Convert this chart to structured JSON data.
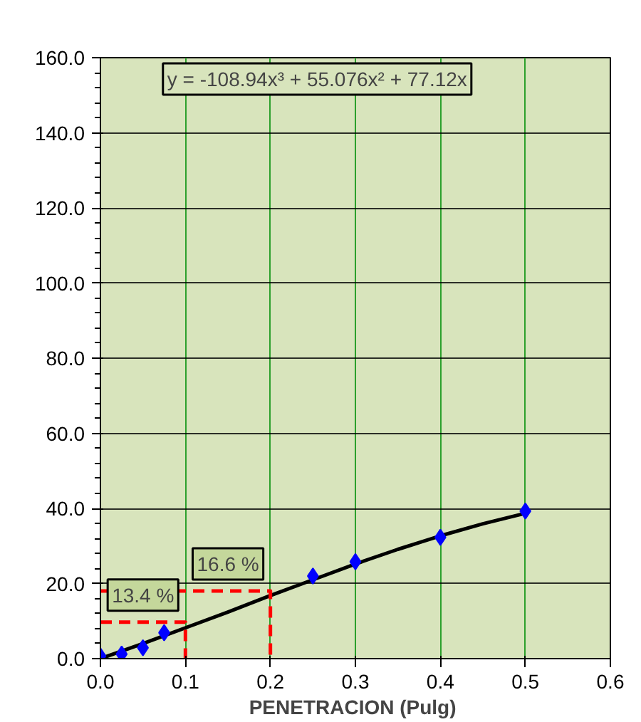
{
  "chart_data": {
    "type": "scatter",
    "xlabel": "PENETRACION  (Pulg)",
    "xlim": [
      0,
      0.6
    ],
    "ylim": [
      0,
      160
    ],
    "xticks": [
      {
        "value": 0,
        "label": "0.0"
      },
      {
        "value": 0.1,
        "label": "0.1"
      },
      {
        "value": 0.2,
        "label": "0.2"
      },
      {
        "value": 0.3,
        "label": "0.3"
      },
      {
        "value": 0.4,
        "label": "0.4"
      },
      {
        "value": 0.5,
        "label": "0.5"
      },
      {
        "value": 0.6,
        "label": "0.6"
      }
    ],
    "yticks": [
      {
        "value": 0,
        "label": "0.0"
      },
      {
        "value": 20,
        "label": "20.0"
      },
      {
        "value": 40,
        "label": "40.0"
      },
      {
        "value": 60,
        "label": "60.0"
      },
      {
        "value": 80,
        "label": "80.0"
      },
      {
        "value": 100,
        "label": "100.0"
      },
      {
        "value": 120,
        "label": "120.0"
      },
      {
        "value": 140,
        "label": "140.0"
      },
      {
        "value": 160,
        "label": "160.0"
      }
    ],
    "grid": true,
    "marker": "diamond",
    "series": [
      {
        "type": "line",
        "color": "#000000",
        "line_style": "solid",
        "marker": "none",
        "x": [
          0,
          0.05,
          0.1,
          0.15,
          0.2,
          0.25,
          0.3,
          0.35,
          0.4,
          0.45,
          0.5
        ],
        "values": [
          0,
          4.0,
          8.2,
          12.4,
          16.8,
          21.0,
          25.2,
          29.1,
          32.7,
          35.9,
          38.7
        ]
      },
      {
        "type": "line",
        "color": "#ff0000",
        "line_style": "dashed",
        "marker": "none",
        "x": [
          0,
          0.1,
          0.1
        ],
        "values": [
          9.7,
          9.7,
          0
        ]
      },
      {
        "type": "line",
        "color": "#ff0000",
        "line_style": "dashed",
        "marker": "none",
        "x": [
          0,
          0.2,
          0.2
        ],
        "values": [
          18.0,
          18.0,
          0
        ]
      },
      {
        "color": "#0000ff",
        "x": [
          0,
          0.025,
          0.05,
          0.075,
          0.25,
          0.3,
          0.4,
          0.5
        ],
        "values": [
          0.7,
          1.2,
          2.9,
          6.9,
          22.0,
          25.8,
          32.3,
          39.3
        ]
      }
    ],
    "annotations": [
      "y = -108.94x³ + 55.076x² + 77.12x",
      {
        "text": "13.4 %",
        "x": 0.1,
        "y": 9.7
      },
      {
        "text": "16.6 %",
        "x": 0.2,
        "y": 18.0
      }
    ]
  }
}
